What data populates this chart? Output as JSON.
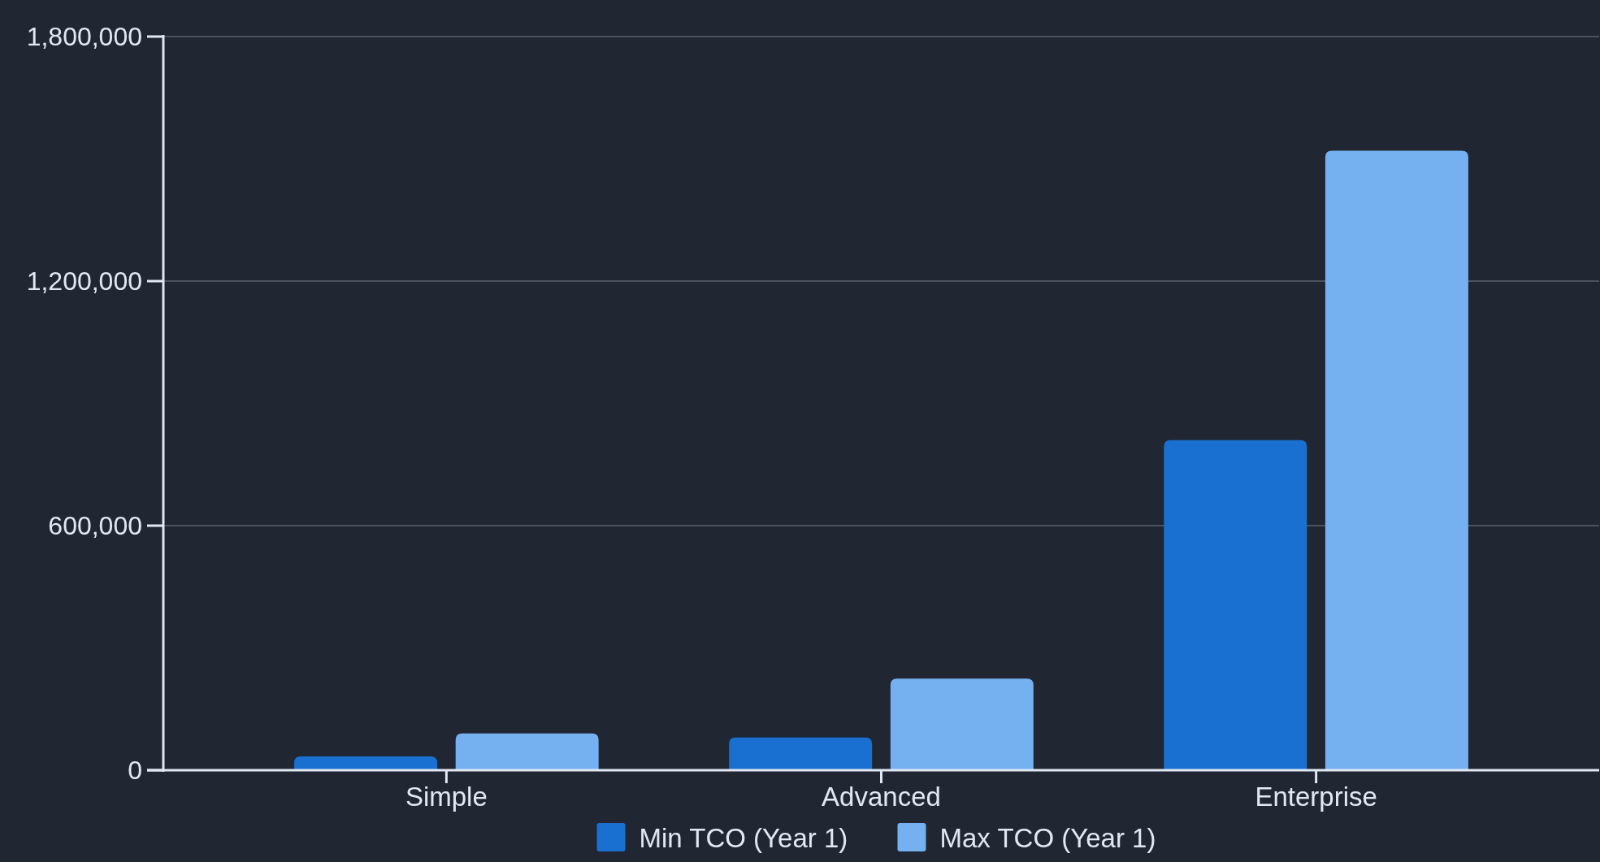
{
  "chart_data": {
    "type": "bar",
    "categories": [
      "Simple",
      "Advanced",
      "Enterprise"
    ],
    "series": [
      {
        "name": "Min TCO (Year 1)",
        "color": "#1a70d0",
        "values": [
          34000,
          80000,
          810000
        ]
      },
      {
        "name": "Max TCO (Year 1)",
        "color": "#75b0f0",
        "values": [
          90000,
          225000,
          1520000
        ]
      }
    ],
    "ylim": [
      0,
      1800000
    ],
    "yticks": [
      {
        "value": 0,
        "label": "0"
      },
      {
        "value": 600000,
        "label": "600,000"
      },
      {
        "value": 1200000,
        "label": "1,200,000"
      },
      {
        "value": 1800000,
        "label": "1,800,000"
      }
    ],
    "grid": "y",
    "legend": "bottom"
  }
}
